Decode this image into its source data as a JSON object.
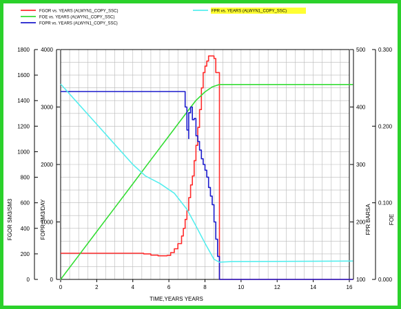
{
  "chart_data": {
    "type": "line",
    "xlabel": "TIME,YEARS   YEARS",
    "xlim": [
      0,
      16
    ],
    "x_ticks": [
      "0",
      "2",
      "4",
      "6",
      "8",
      "10",
      "12",
      "14",
      "16"
    ],
    "grid": true,
    "legend": {
      "placement": "top",
      "items": [
        {
          "label": "FGOR vs. YEARS (ALWYN1_COPY_SSC)",
          "color": "#ff2a2a",
          "highlight": false
        },
        {
          "label": "FOE vs. YEARS (ALWYN1_COPY_SSC)",
          "color": "#33dd33",
          "highlight": false
        },
        {
          "label": "FOPR vs. YEARS (ALWYN1_COPY_SSC)",
          "color": "#1a1acc",
          "highlight": false
        },
        {
          "label": "FPR vs. YEARS (ALWYN1_COPY_SSC)",
          "color": "#55eeee",
          "highlight": true
        }
      ],
      "highlight_color": "#ffff33"
    },
    "axes": {
      "fgor": {
        "label": "FGOR   SM3/SM3",
        "range": [
          0,
          1800
        ],
        "ticks": [
          "0",
          "200",
          "400",
          "600",
          "800",
          "1000",
          "1200",
          "1400",
          "1600",
          "1800"
        ]
      },
      "fopr": {
        "label": "FOPR   SM3/DAY",
        "range": [
          0,
          4000
        ],
        "ticks": [
          "0",
          "1000",
          "2000",
          "3000",
          "4000"
        ]
      },
      "fpr": {
        "label": "FPR   BARSA",
        "range": [
          100,
          500
        ],
        "ticks": [
          "100",
          "200",
          "300",
          "400",
          "500"
        ]
      },
      "foe": {
        "label": "FOE",
        "range": [
          0,
          0.3
        ],
        "ticks": [
          "0.000",
          "0.100",
          "0.200",
          "0.300"
        ]
      }
    },
    "series": [
      {
        "name": "FGOR",
        "axis": "fgor",
        "color": "#ff2a2a",
        "step": true,
        "points": [
          [
            0,
            205
          ],
          [
            4.2,
            205
          ],
          [
            4.6,
            200
          ],
          [
            5.0,
            190
          ],
          [
            5.4,
            185
          ],
          [
            5.9,
            188
          ],
          [
            6.1,
            210
          ],
          [
            6.3,
            240
          ],
          [
            6.5,
            280
          ],
          [
            6.7,
            340
          ],
          [
            6.8,
            400
          ],
          [
            6.9,
            470
          ],
          [
            7.0,
            540
          ],
          [
            7.1,
            640
          ],
          [
            7.2,
            740
          ],
          [
            7.3,
            810
          ],
          [
            7.4,
            930
          ],
          [
            7.5,
            1050
          ],
          [
            7.6,
            1190
          ],
          [
            7.7,
            1330
          ],
          [
            7.8,
            1500
          ],
          [
            7.9,
            1620
          ],
          [
            8.0,
            1670
          ],
          [
            8.1,
            1710
          ],
          [
            8.2,
            1750
          ],
          [
            8.4,
            1750
          ],
          [
            8.5,
            1730
          ],
          [
            8.6,
            1620
          ],
          [
            8.8,
            1620
          ],
          [
            8.8,
            0
          ],
          [
            16.2,
            0
          ]
        ]
      },
      {
        "name": "FOE",
        "axis": "foe",
        "color": "#33dd33",
        "step": false,
        "points": [
          [
            0,
            0
          ],
          [
            1,
            0.0312
          ],
          [
            2,
            0.0624
          ],
          [
            3,
            0.0936
          ],
          [
            4,
            0.1248
          ],
          [
            5,
            0.156
          ],
          [
            6,
            0.1872
          ],
          [
            6.9,
            0.2152
          ],
          [
            7.5,
            0.2336
          ],
          [
            8.0,
            0.2448
          ],
          [
            8.4,
            0.2512
          ],
          [
            8.8,
            0.2544
          ],
          [
            16.2,
            0.2544
          ]
        ]
      },
      {
        "name": "FOPR",
        "axis": "fopr",
        "color": "#1a1acc",
        "step": true,
        "points": [
          [
            0,
            3270
          ],
          [
            6.9,
            3270
          ],
          [
            6.9,
            3000
          ],
          [
            7.0,
            2600
          ],
          [
            7.1,
            2450
          ],
          [
            7.1,
            2900
          ],
          [
            7.2,
            3000
          ],
          [
            7.3,
            2780
          ],
          [
            7.4,
            2800
          ],
          [
            7.5,
            2500
          ],
          [
            7.6,
            2400
          ],
          [
            7.7,
            2250
          ],
          [
            7.8,
            2100
          ],
          [
            7.9,
            2000
          ],
          [
            8.0,
            1900
          ],
          [
            8.1,
            1780
          ],
          [
            8.2,
            1600
          ],
          [
            8.3,
            1450
          ],
          [
            8.4,
            1300
          ],
          [
            8.5,
            1000
          ],
          [
            8.6,
            700
          ],
          [
            8.7,
            400
          ],
          [
            8.8,
            0
          ],
          [
            16.2,
            0
          ]
        ]
      },
      {
        "name": "FPR",
        "axis": "fpr",
        "color": "#55eeee",
        "step": false,
        "points": [
          [
            0,
            440
          ],
          [
            1,
            405
          ],
          [
            2,
            370
          ],
          [
            3,
            335
          ],
          [
            4,
            300
          ],
          [
            4.7,
            280
          ],
          [
            5.5,
            267
          ],
          [
            6.3,
            250
          ],
          [
            7.0,
            222
          ],
          [
            7.5,
            193
          ],
          [
            8.0,
            163
          ],
          [
            8.5,
            135
          ],
          [
            8.8,
            130
          ],
          [
            9.5,
            131
          ],
          [
            16.2,
            132
          ]
        ]
      }
    ]
  }
}
